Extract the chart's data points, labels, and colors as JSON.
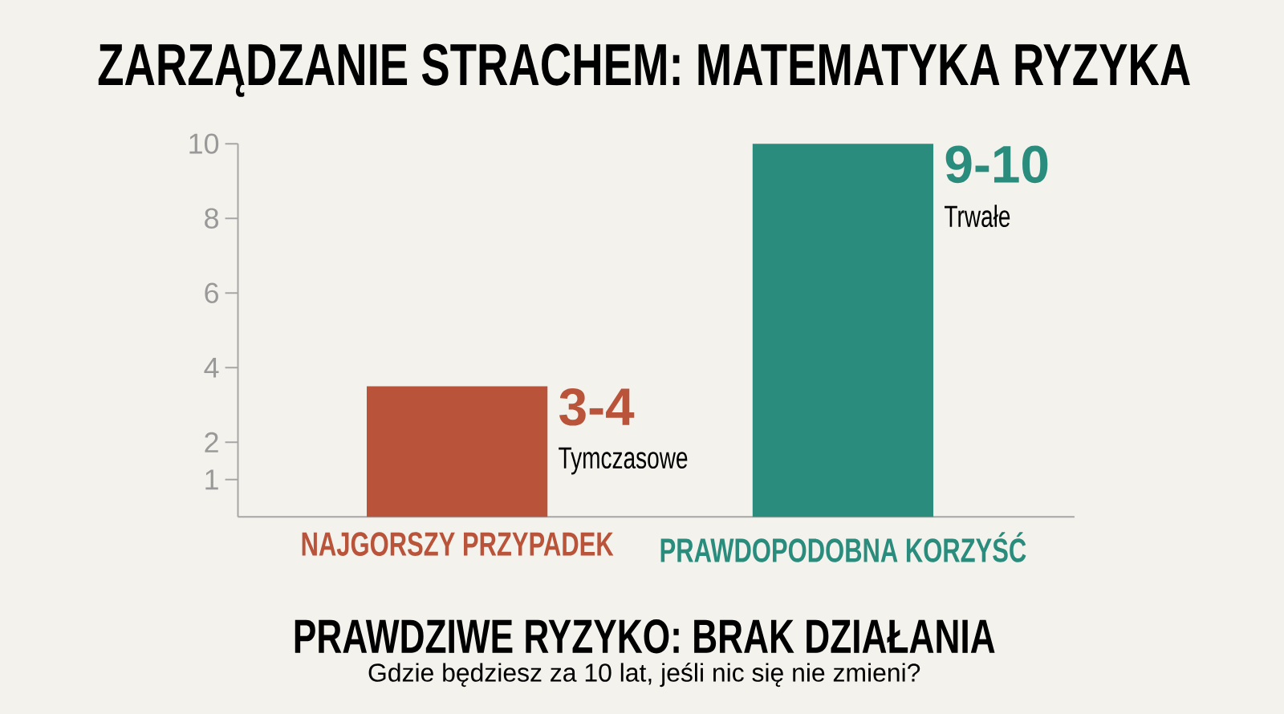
{
  "chart_data": {
    "type": "bar",
    "title": "ZARZĄDZANIE STRACHEM: MATEMATYKA RYZYKA",
    "categories": [
      "NAJGORSZY PRZYPADEK",
      "PRAWDOPODOBNA KORZYŚĆ"
    ],
    "values": [
      3.5,
      10
    ],
    "colors": [
      "#b9533a",
      "#2a8c7c"
    ],
    "ylim": [
      0,
      10
    ],
    "yticks": [
      1,
      2,
      4,
      6,
      8,
      10
    ],
    "grid": false,
    "annotations": [
      "3-4",
      "Tymczasowe",
      "9-10",
      "Trwałe",
      "PRAWDZIWE RYZYKO: BRAK DZIAŁANIA",
      "Gdzie będziesz za 10 lat, jeśli nic się nie zmieni?"
    ]
  }
}
